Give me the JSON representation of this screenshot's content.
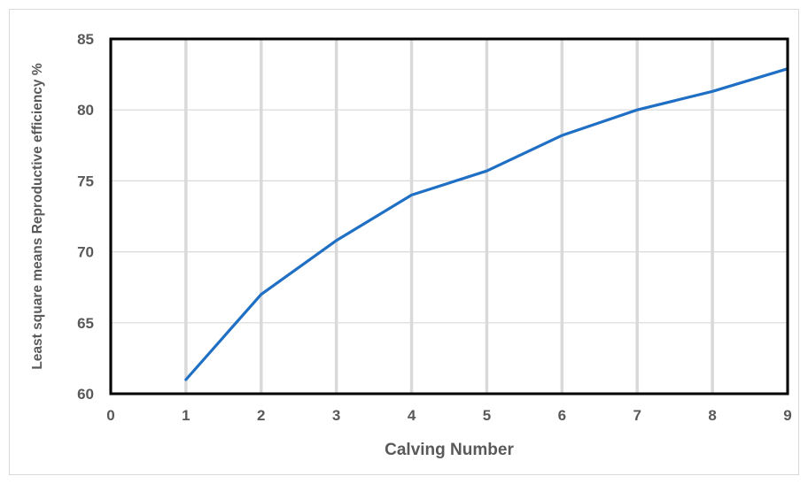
{
  "chart_data": {
    "type": "line",
    "title": "",
    "xlabel": "Calving Number",
    "ylabel": "Least square means Reproductive efficiency %",
    "xlim": [
      0,
      9
    ],
    "ylim": [
      60,
      85
    ],
    "x_ticks": [
      "0",
      "1",
      "2",
      "3",
      "4",
      "5",
      "6",
      "7",
      "8",
      "9"
    ],
    "y_ticks": [
      "60",
      "65",
      "70",
      "75",
      "80",
      "85"
    ],
    "grid": {
      "vertical": true,
      "horizontal": true
    },
    "legend": "none",
    "colors": {
      "line": "#1f6fc4",
      "vertical_grid": "#d9d9d9",
      "horizontal_grid": "#d9d9d9",
      "plot_border": "#000000",
      "text": "#595959"
    },
    "series": [
      {
        "x": [
          1,
          2,
          3,
          4,
          5,
          6,
          7,
          8,
          9
        ],
        "values": [
          61.0,
          67.0,
          70.8,
          74.0,
          75.7,
          78.2,
          80.0,
          81.3,
          82.9
        ]
      }
    ]
  }
}
